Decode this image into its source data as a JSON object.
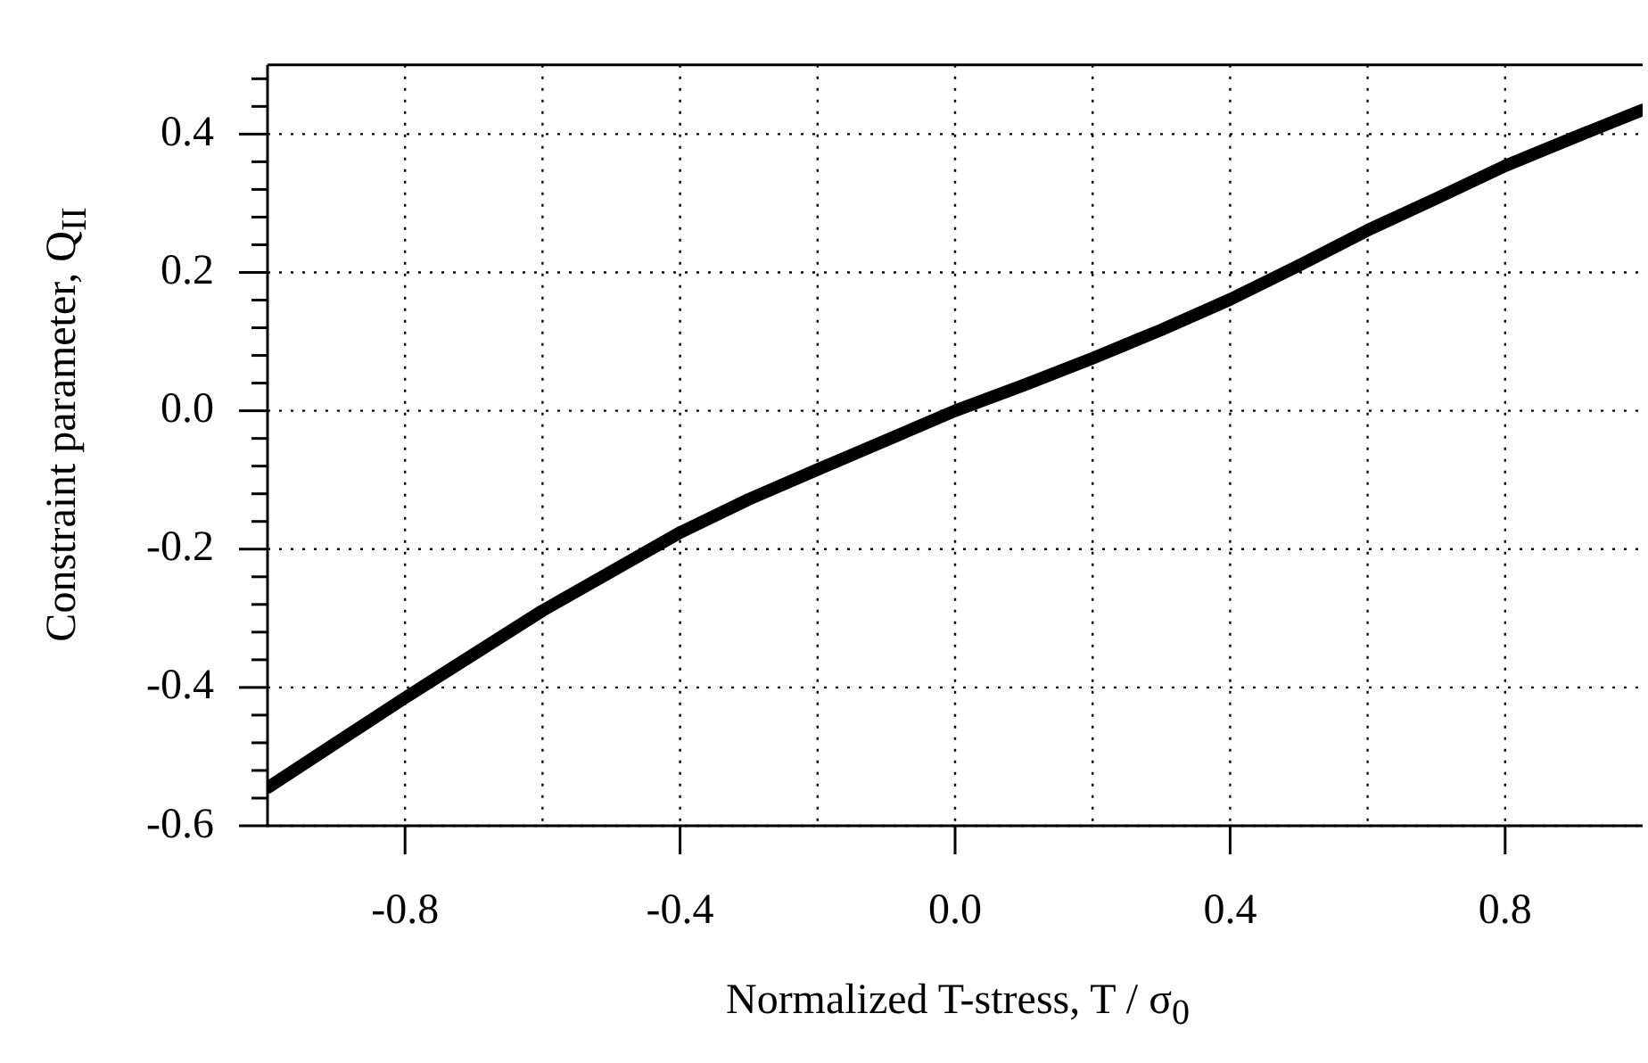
{
  "chart_data": {
    "type": "line",
    "xlabel": "Normalized T-stress,  T / σ$_{0}$",
    "ylabel": "Constraint parameter,  Q$_{II}$",
    "x": [
      -1,
      -0.9,
      -0.8,
      -0.6,
      -0.4,
      -0.3,
      -0.2,
      0,
      0.1,
      0.2,
      0.3,
      0.4,
      0.5,
      0.6,
      0.7,
      0.8,
      0.9,
      1
    ],
    "series": [
      {
        "color": "#000000",
        "values": [
          -0.545,
          -0.48,
          -0.415,
          -0.289,
          -0.176,
          -0.128,
          -0.085,
          0,
          0.037,
          0.076,
          0.117,
          0.161,
          0.21,
          0.261,
          0.307,
          0.354,
          0.395,
          0.435
        ]
      }
    ],
    "xlim": [
      -1,
      1
    ],
    "ylim": [
      -0.6,
      0.5
    ],
    "xticks": [
      {
        "value": -0.8,
        "label": "-0.8"
      },
      {
        "value": -0.6,
        "label": null
      },
      {
        "value": -0.4,
        "label": "-0.4"
      },
      {
        "value": -0.2,
        "label": null
      },
      {
        "value": 0,
        "label": "0.0"
      },
      {
        "value": 0.2,
        "label": null
      },
      {
        "value": 0.4,
        "label": "0.4"
      },
      {
        "value": 0.6,
        "label": null
      },
      {
        "value": 0.8,
        "label": "0.8"
      }
    ],
    "yticks": [
      {
        "value": -0.6,
        "label": "-0.6"
      },
      {
        "value": -0.56,
        "label": null
      },
      {
        "value": -0.52,
        "label": null
      },
      {
        "value": -0.48,
        "label": null
      },
      {
        "value": -0.44,
        "label": null
      },
      {
        "value": -0.4,
        "label": "-0.4"
      },
      {
        "value": -0.36,
        "label": null
      },
      {
        "value": -0.32,
        "label": null
      },
      {
        "value": -0.28,
        "label": null
      },
      {
        "value": -0.24,
        "label": null
      },
      {
        "value": -0.2,
        "label": "-0.2"
      },
      {
        "value": -0.16,
        "label": null
      },
      {
        "value": -0.12,
        "label": null
      },
      {
        "value": -0.08,
        "label": null
      },
      {
        "value": -0.04,
        "label": null
      },
      {
        "value": 0,
        "label": "0.0"
      },
      {
        "value": 0.04,
        "label": null
      },
      {
        "value": 0.08,
        "label": null
      },
      {
        "value": 0.12,
        "label": null
      },
      {
        "value": 0.16,
        "label": null
      },
      {
        "value": 0.2,
        "label": "0.2"
      },
      {
        "value": 0.24,
        "label": null
      },
      {
        "value": 0.28,
        "label": null
      },
      {
        "value": 0.32,
        "label": null
      },
      {
        "value": 0.36,
        "label": null
      },
      {
        "value": 0.4,
        "label": "0.4"
      },
      {
        "value": 0.44,
        "label": null
      },
      {
        "value": 0.48,
        "label": null
      }
    ],
    "grid": true,
    "marker": "none",
    "line_style": "solid",
    "legend": false
  }
}
